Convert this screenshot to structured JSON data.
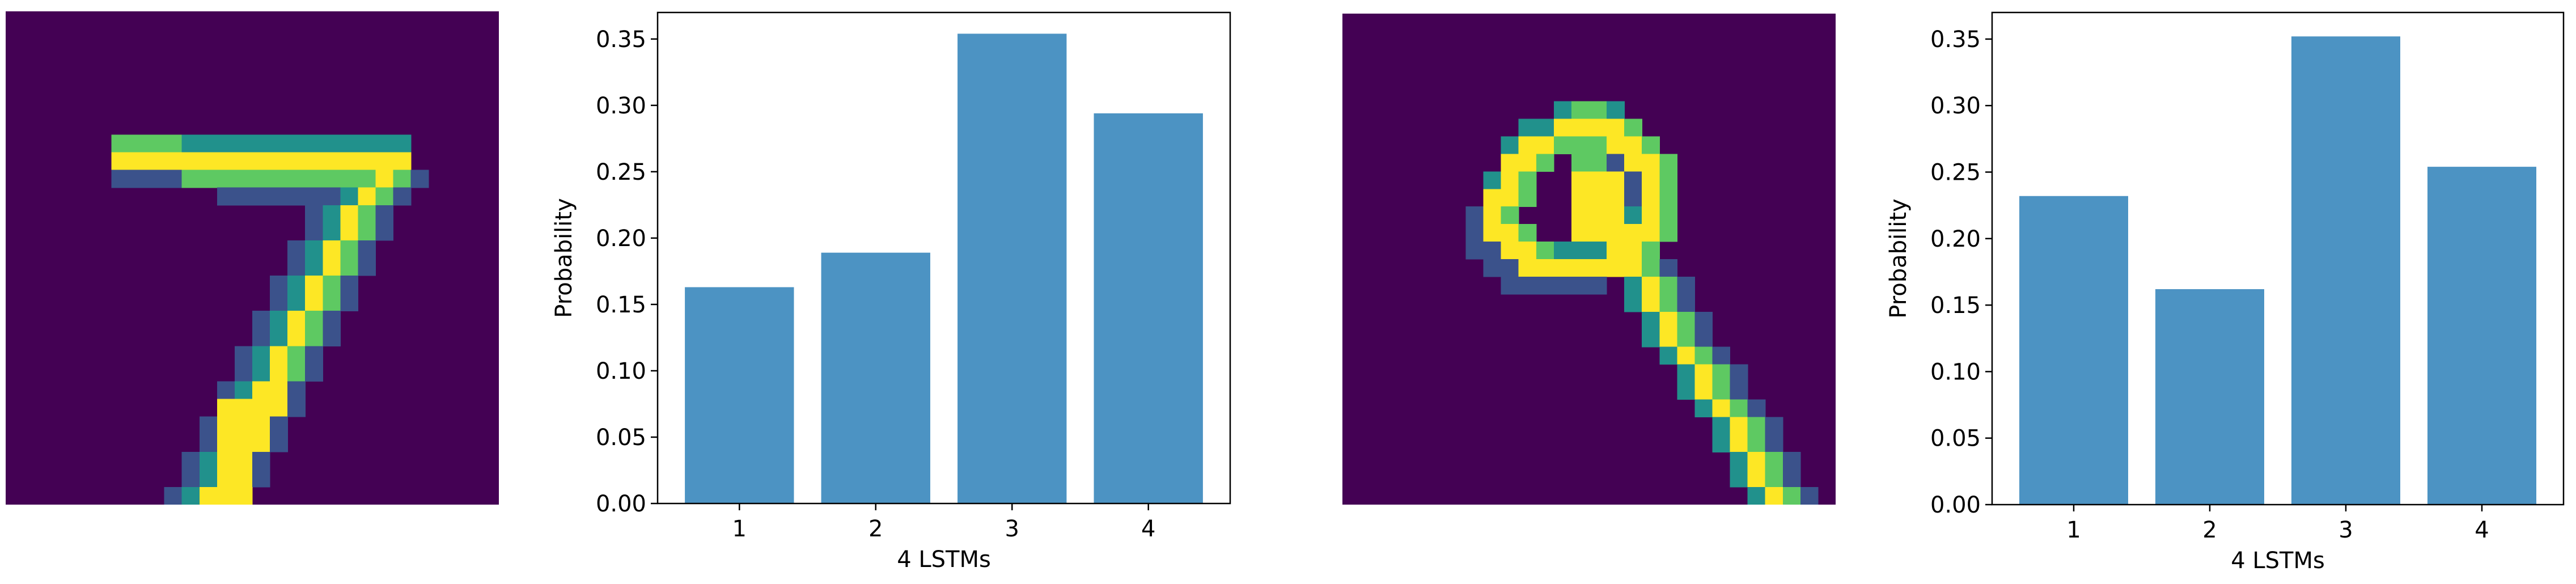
{
  "colors": {
    "bar": "#4c93c3",
    "image_background": "#440154",
    "digit_low": "#3b528b",
    "digit_mid": "#21918c",
    "digit_mid_high": "#5ec962",
    "digit_high": "#fde725"
  },
  "images": [
    {
      "name": "mnist-digit-7",
      "colormap": "viridis"
    },
    {
      "name": "mnist-digit-9",
      "colormap": "viridis"
    }
  ],
  "chart_data": [
    {
      "type": "bar",
      "categories": [
        "1",
        "2",
        "3",
        "4"
      ],
      "values": [
        0.163,
        0.189,
        0.354,
        0.294
      ],
      "xlabel": "4 LSTMs",
      "ylabel": "Probability",
      "ylim": [
        0,
        0.37
      ],
      "yticks": [
        "0.00",
        "0.05",
        "0.10",
        "0.15",
        "0.20",
        "0.25",
        "0.30",
        "0.35"
      ],
      "grid": false
    },
    {
      "type": "bar",
      "categories": [
        "1",
        "2",
        "3",
        "4"
      ],
      "values": [
        0.232,
        0.162,
        0.352,
        0.254
      ],
      "xlabel": "4 LSTMs",
      "ylabel": "Probability",
      "ylim": [
        0,
        0.37
      ],
      "yticks": [
        "0.00",
        "0.05",
        "0.10",
        "0.15",
        "0.20",
        "0.25",
        "0.30",
        "0.35"
      ],
      "grid": false
    }
  ]
}
